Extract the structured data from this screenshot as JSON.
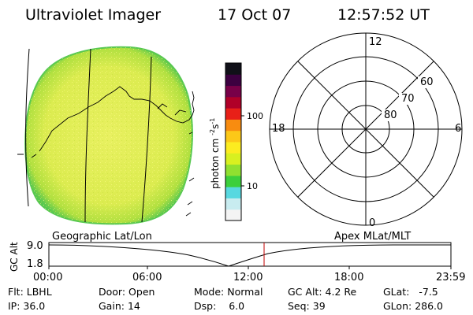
{
  "header": {
    "instrument": "Ultraviolet Imager",
    "date": "17 Oct 07",
    "time": "12:57:52 UT"
  },
  "colorbar": {
    "unit_label": "photon cm",
    "unit_exp1": "-2",
    "unit_s": "s",
    "unit_exp2": "-1",
    "tick_100": "100",
    "tick_10": "10",
    "colors_bottom_to_top": [
      "#f4f4f4",
      "#c8ecf0",
      "#58d8e0",
      "#3ccf3c",
      "#90e030",
      "#d8f020",
      "#fcec20",
      "#fcc818",
      "#f88c10",
      "#e82018",
      "#b00028",
      "#780048",
      "#3c0040",
      "#101018"
    ]
  },
  "image": {
    "fill_color": "#e4f05a",
    "edge_color": "#58c850"
  },
  "polar_plot": {
    "mlt_labels": {
      "top": "12",
      "left": "18",
      "right": "6",
      "bottom": "0"
    },
    "lat_labels": [
      "60",
      "70",
      "80"
    ]
  },
  "orbit_plot": {
    "left_title": "Geographic Lat/Lon",
    "right_title": "Apex MLat/MLT",
    "y_axis_label": "GC Alt",
    "y_max": "9.0",
    "y_min": "1.8",
    "x_ticks": [
      "00:00",
      "06:00",
      "12:00",
      "18:00",
      "23:59"
    ],
    "current_time_marker": "12:57:52"
  },
  "info": {
    "flt_label": "Flt:",
    "flt_value": "LBHL",
    "ip_label": "IP:",
    "ip_value": "36.0",
    "door_label": "Door:",
    "door_value": "Open",
    "gain_label": "Gain:",
    "gain_value": "14",
    "mode_label": "Mode:",
    "mode_value": "Normal",
    "dsp_label": "Dsp:",
    "dsp_value": "6.0",
    "gcalt_label": "GC Alt:",
    "gcalt_value": "4.2 Re",
    "seq_label": "Seq:",
    "seq_value": "39",
    "glat_label": "GLat:",
    "glat_value": "-7.5",
    "glon_label": "GLon:",
    "glon_value": "286.0"
  }
}
